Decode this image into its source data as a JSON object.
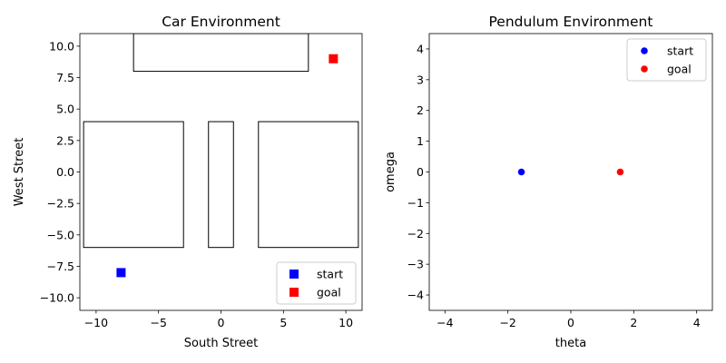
{
  "chart_data": [
    {
      "type": "scatter",
      "title": "Car Environment",
      "xlabel": "South Street",
      "ylabel": "West Street",
      "xlim": [
        -11.3,
        11.3
      ],
      "ylim": [
        -11,
        11
      ],
      "xticks": [
        -10,
        -5,
        0,
        5,
        10
      ],
      "yticks": [
        -10.0,
        -7.5,
        -5.0,
        -2.5,
        0.0,
        2.5,
        5.0,
        7.5,
        10.0
      ],
      "xtick_labels": [
        "−10",
        "−5",
        "0",
        "5",
        "10"
      ],
      "ytick_labels": [
        "−10.0",
        "−7.5",
        "−5.0",
        "−2.5",
        "0.0",
        "2.5",
        "5.0",
        "7.5",
        "10.0"
      ],
      "grid": false,
      "legend": "lower-right",
      "obstacles": [
        {
          "x0": -7,
          "x1": 7,
          "y0": 8,
          "y1": 11
        },
        {
          "x0": -11,
          "x1": -3,
          "y0": -6,
          "y1": 4
        },
        {
          "x0": -1,
          "x1": 1,
          "y0": -6,
          "y1": 4
        },
        {
          "x0": 3,
          "x1": 11,
          "y0": -6,
          "y1": 4
        }
      ],
      "series": [
        {
          "name": "start",
          "marker": "square",
          "color": "#0000ff",
          "x": [
            -8
          ],
          "y": [
            -8
          ]
        },
        {
          "name": "goal",
          "marker": "square",
          "color": "#ff0000",
          "x": [
            9
          ],
          "y": [
            9
          ]
        }
      ]
    },
    {
      "type": "scatter",
      "title": "Pendulum Environment",
      "xlabel": "theta",
      "ylabel": "omega",
      "xlim": [
        -4.5,
        4.5
      ],
      "ylim": [
        -4.5,
        4.5
      ],
      "xticks": [
        -4,
        -2,
        0,
        2,
        4
      ],
      "yticks": [
        -4,
        -3,
        -2,
        -1,
        0,
        1,
        2,
        3,
        4
      ],
      "xtick_labels": [
        "−4",
        "−2",
        "0",
        "2",
        "4"
      ],
      "ytick_labels": [
        "−4",
        "−3",
        "−2",
        "−1",
        "0",
        "1",
        "2",
        "3",
        "4"
      ],
      "grid": false,
      "legend": "upper-right",
      "series": [
        {
          "name": "start",
          "marker": "circle",
          "color": "#0000ff",
          "x": [
            -1.5708
          ],
          "y": [
            0
          ]
        },
        {
          "name": "goal",
          "marker": "circle",
          "color": "#ff0000",
          "x": [
            1.5708
          ],
          "y": [
            0
          ]
        }
      ]
    }
  ]
}
